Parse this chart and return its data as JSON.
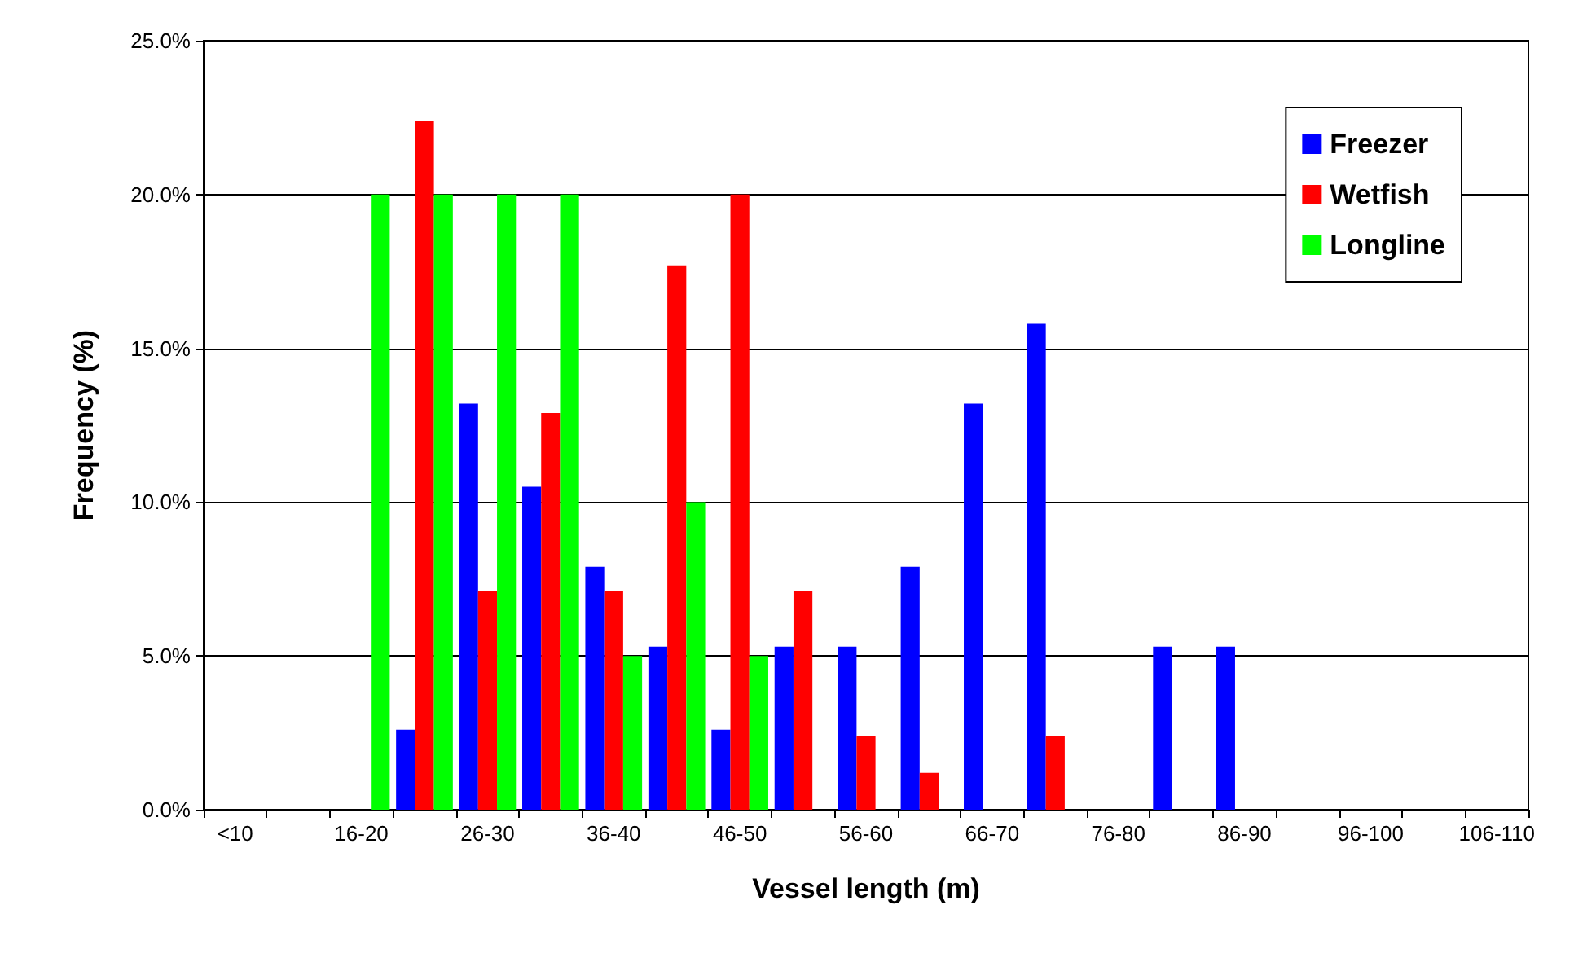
{
  "chart_data": {
    "type": "bar",
    "xlabel": "Vessel length (m)",
    "ylabel": "Frequency (%)",
    "categories": [
      "<10",
      null,
      "16-20",
      null,
      "26-30",
      null,
      "36-40",
      null,
      "46-50",
      null,
      "56-60",
      null,
      "66-70",
      null,
      "76-80",
      null,
      "86-90",
      null,
      "96-100",
      null,
      "106-110"
    ],
    "series": [
      {
        "name": "Freezer",
        "color": "#0000ff",
        "values": [
          0,
          0,
          0,
          2.6,
          13.2,
          10.5,
          7.9,
          5.3,
          2.6,
          5.3,
          5.3,
          7.9,
          13.2,
          15.8,
          0,
          5.3,
          5.3,
          0,
          0,
          0,
          0
        ]
      },
      {
        "name": "Wetfish",
        "color": "#ff0000",
        "values": [
          0,
          0,
          0,
          22.4,
          7.1,
          12.9,
          7.1,
          17.7,
          20,
          7.1,
          2.4,
          1.2,
          0,
          2.4,
          0,
          0,
          0,
          0,
          0,
          0,
          0
        ]
      },
      {
        "name": "Longline",
        "color": "#00ff00",
        "values": [
          0,
          0,
          20,
          20,
          20,
          20,
          5,
          10,
          5,
          0,
          0,
          0,
          0,
          0,
          0,
          0,
          0,
          0,
          0,
          0,
          0
        ]
      }
    ],
    "ylim": [
      0,
      25
    ],
    "yticks": [
      {
        "value": 0,
        "label": "0.0%"
      },
      {
        "value": 5,
        "label": "5.0%"
      },
      {
        "value": 10,
        "label": "10.0%"
      },
      {
        "value": 15,
        "label": "15.0%"
      },
      {
        "value": 20,
        "label": "20.0%"
      },
      {
        "value": 25,
        "label": "25.0%"
      }
    ],
    "grid": "y",
    "legend": "top right"
  }
}
